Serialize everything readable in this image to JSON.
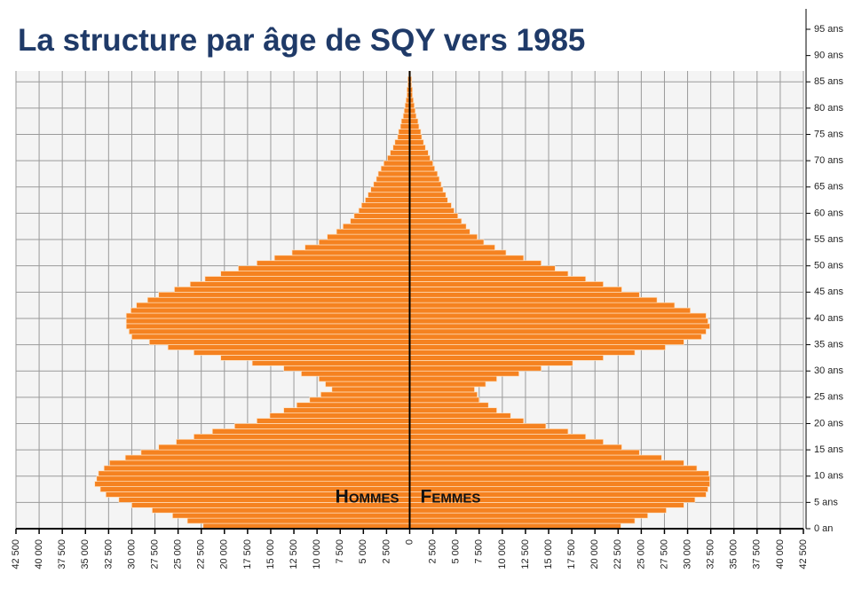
{
  "chart_data": {
    "type": "pyramid",
    "title": "La structure par âge de SQY vers 1985",
    "x": [
      0,
      1,
      2,
      3,
      4,
      5,
      6,
      7,
      8,
      9,
      10,
      11,
      12,
      13,
      14,
      15,
      16,
      17,
      18,
      19,
      20,
      21,
      22,
      23,
      24,
      25,
      26,
      27,
      28,
      29,
      30,
      31,
      32,
      33,
      34,
      35,
      36,
      37,
      38,
      39,
      40,
      41,
      42,
      43,
      44,
      45,
      46,
      47,
      48,
      49,
      50,
      51,
      52,
      53,
      54,
      55,
      56,
      57,
      58,
      59,
      60,
      61,
      62,
      63,
      64,
      65,
      66,
      67,
      68,
      69,
      70,
      71,
      72,
      73,
      74,
      75,
      76,
      77,
      78,
      79,
      80,
      81,
      82,
      83,
      84,
      85,
      86
    ],
    "series": [
      {
        "name": "Hommes",
        "color": "#f58220",
        "side": "left",
        "values": [
          22300,
          24000,
          25600,
          27800,
          30000,
          31400,
          32800,
          33400,
          34000,
          33800,
          33600,
          33000,
          32400,
          30700,
          29000,
          27100,
          25200,
          23300,
          21300,
          18900,
          16500,
          15100,
          13600,
          12200,
          10800,
          9600,
          8400,
          9100,
          9800,
          11700,
          13600,
          17000,
          20400,
          23300,
          26100,
          28100,
          30000,
          30300,
          30600,
          30600,
          30600,
          30100,
          29500,
          28300,
          27100,
          25400,
          23700,
          22100,
          20400,
          18500,
          16500,
          14600,
          12700,
          11300,
          9800,
          8900,
          7900,
          7200,
          6400,
          6000,
          5500,
          5200,
          4800,
          4500,
          4200,
          3900,
          3600,
          3400,
          3100,
          2800,
          2400,
          2100,
          1800,
          1600,
          1300,
          1200,
          1000,
          900,
          700,
          600,
          500,
          400,
          300,
          300,
          200,
          200,
          100
        ]
      },
      {
        "name": "Femmes",
        "color": "#f58220",
        "side": "right",
        "values": [
          22800,
          24300,
          25700,
          27700,
          29600,
          30800,
          32000,
          32200,
          32400,
          32400,
          32300,
          31000,
          29600,
          27200,
          24800,
          22900,
          20900,
          19000,
          17100,
          14700,
          12300,
          10900,
          9400,
          8500,
          7500,
          7300,
          7000,
          8200,
          9400,
          11800,
          14200,
          17600,
          20900,
          24300,
          27600,
          29600,
          31500,
          32000,
          32400,
          32200,
          32000,
          30300,
          28600,
          26700,
          24800,
          22900,
          20900,
          19000,
          17100,
          15700,
          14200,
          12300,
          10400,
          9200,
          8000,
          7300,
          6500,
          6100,
          5600,
          5200,
          4800,
          4500,
          4100,
          3900,
          3600,
          3400,
          3200,
          3000,
          2700,
          2500,
          2200,
          2000,
          1700,
          1500,
          1300,
          1200,
          1000,
          900,
          700,
          600,
          500,
          400,
          300,
          300,
          200,
          200,
          100
        ]
      }
    ],
    "ylim": [
      0,
      95
    ],
    "yticks": [
      {
        "value": 0,
        "label": "0 an"
      },
      {
        "value": 5,
        "label": "5 ans"
      },
      {
        "value": 10,
        "label": "10 ans"
      },
      {
        "value": 15,
        "label": "15 ans"
      },
      {
        "value": 20,
        "label": "20 ans"
      },
      {
        "value": 25,
        "label": "25 ans"
      },
      {
        "value": 30,
        "label": "30 ans"
      },
      {
        "value": 35,
        "label": "35 ans"
      },
      {
        "value": 40,
        "label": "40 ans"
      },
      {
        "value": 45,
        "label": "45 ans"
      },
      {
        "value": 50,
        "label": "50 ans"
      },
      {
        "value": 55,
        "label": "55 ans"
      },
      {
        "value": 60,
        "label": "60 ans"
      },
      {
        "value": 65,
        "label": "65 ans"
      },
      {
        "value": 70,
        "label": "70 ans"
      },
      {
        "value": 75,
        "label": "75 ans"
      },
      {
        "value": 80,
        "label": "80 ans"
      },
      {
        "value": 85,
        "label": "85 ans"
      },
      {
        "value": 90,
        "label": "90 ans"
      },
      {
        "value": 95,
        "label": "95 ans"
      }
    ],
    "xlim": [
      -42500,
      42500
    ],
    "xticks": [
      {
        "value": -42500,
        "label": "42 500"
      },
      {
        "value": -40000,
        "label": "40 000"
      },
      {
        "value": -37500,
        "label": "37 500"
      },
      {
        "value": -35000,
        "label": "35 000"
      },
      {
        "value": -32500,
        "label": "32 500"
      },
      {
        "value": -30000,
        "label": "30 000"
      },
      {
        "value": -27500,
        "label": "27 500"
      },
      {
        "value": -25000,
        "label": "25 000"
      },
      {
        "value": -22500,
        "label": "22 500"
      },
      {
        "value": -20000,
        "label": "20 000"
      },
      {
        "value": -17500,
        "label": "17 500"
      },
      {
        "value": -15000,
        "label": "15 000"
      },
      {
        "value": -12500,
        "label": "12 500"
      },
      {
        "value": -10000,
        "label": "10 000"
      },
      {
        "value": -7500,
        "label": "7 500"
      },
      {
        "value": -5000,
        "label": "5 000"
      },
      {
        "value": -2500,
        "label": "2 500"
      },
      0,
      {
        "value": 2500,
        "label": "2 500"
      },
      {
        "value": 5000,
        "label": "5 000"
      },
      {
        "value": 7500,
        "label": "7 500"
      },
      {
        "value": 10000,
        "label": "10 000"
      },
      {
        "value": 12500,
        "label": "12 500"
      },
      {
        "value": 15000,
        "label": "15 000"
      },
      {
        "value": 17500,
        "label": "17 500"
      },
      {
        "value": 20000,
        "label": "20 000"
      },
      {
        "value": 22500,
        "label": "22 500"
      },
      {
        "value": 25000,
        "label": "25 000"
      },
      {
        "value": 27500,
        "label": "27 500"
      },
      {
        "value": 30000,
        "label": "30 000"
      },
      {
        "value": 32500,
        "label": "32 500"
      },
      {
        "value": 35000,
        "label": "35 000"
      },
      {
        "value": 37500,
        "label": "37 500"
      },
      {
        "value": 40000,
        "label": "40 000"
      },
      {
        "value": 42500,
        "label": "42 500"
      }
    ],
    "grid": true
  }
}
